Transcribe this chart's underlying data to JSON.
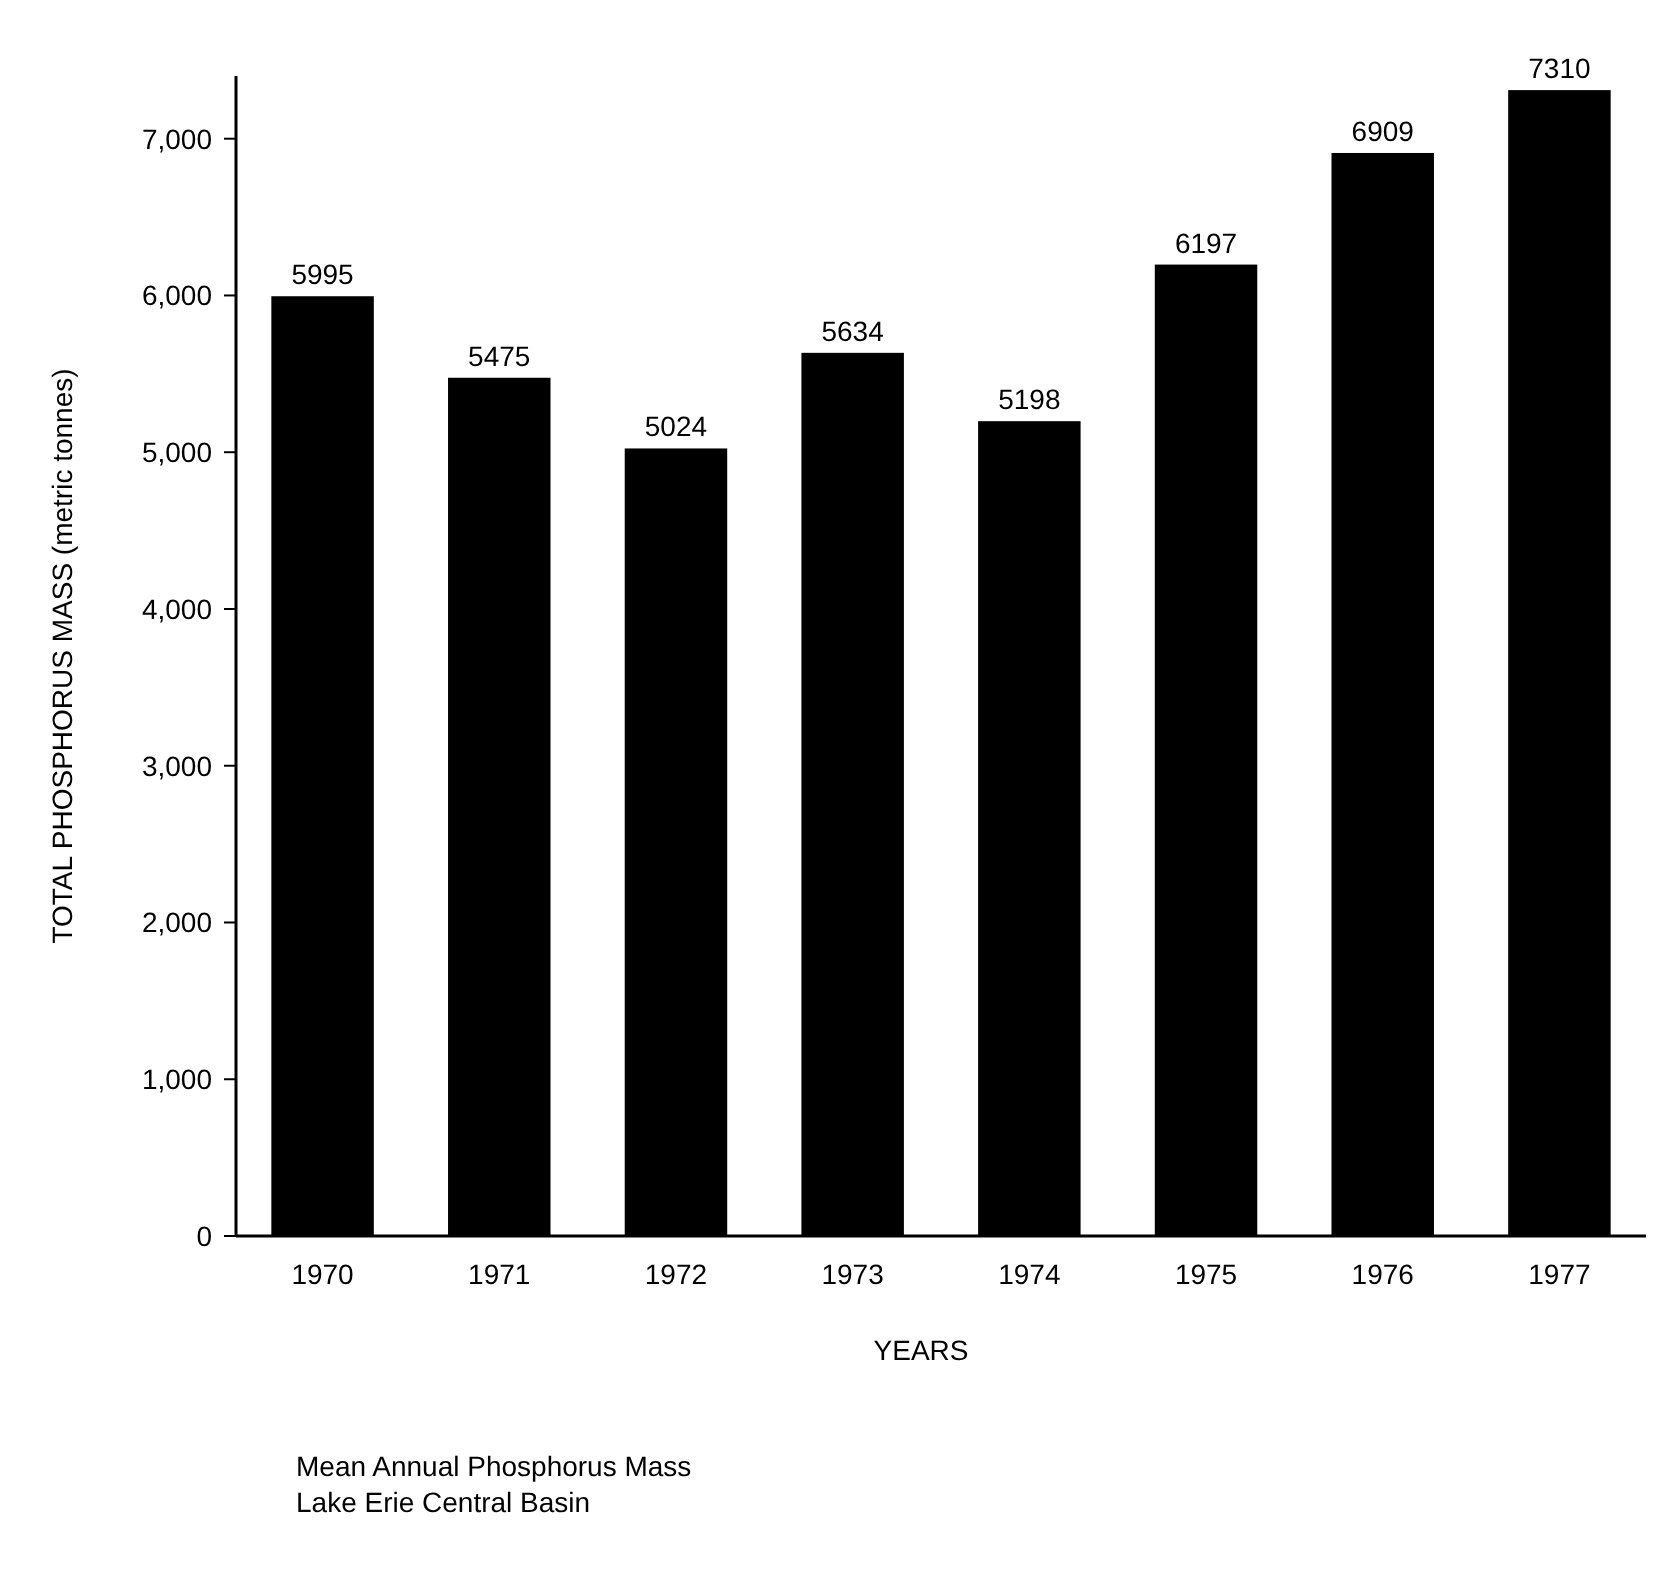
{
  "chart_data": {
    "type": "bar",
    "title": "Mean Annual Phosphorus Mass",
    "subtitle": "Lake Erie Central Basin",
    "xlabel": "YEARS",
    "ylabel": "TOTAL PHOSPHORUS MASS (metric tonnes)",
    "categories": [
      "1970",
      "1971",
      "1972",
      "1973",
      "1974",
      "1975",
      "1976",
      "1977"
    ],
    "values": [
      5995,
      5475,
      5024,
      5634,
      5198,
      6197,
      6909,
      7310
    ],
    "color": "#000000",
    "data_labels": true,
    "grid": false,
    "ylim": [
      0,
      7400
    ],
    "yticks": [
      0,
      {
        "value": 1000,
        "label": "1,000"
      },
      {
        "value": 2000,
        "label": "2,000"
      },
      {
        "value": 3000,
        "label": "3,000"
      },
      {
        "value": 4000,
        "label": "4,000"
      },
      {
        "value": 5000,
        "label": "5,000"
      },
      {
        "value": 6000,
        "label": "6,000"
      },
      {
        "value": 7000,
        "label": "7,000"
      }
    ]
  }
}
